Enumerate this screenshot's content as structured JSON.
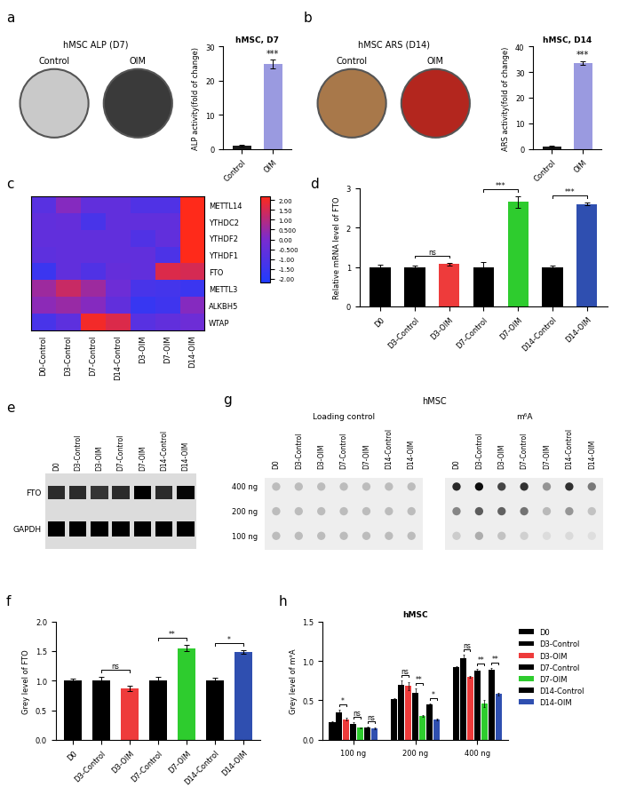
{
  "chart_data": [
    {
      "panel": "a",
      "type": "image",
      "title": "hMSC ALP (D7)",
      "labels": [
        "Control",
        "OIM"
      ],
      "colors": [
        "#c9c9c9",
        "#3a3a3a"
      ]
    },
    {
      "type": "bar",
      "title": "hMSC, D7",
      "categories": [
        "Control",
        "OIM"
      ],
      "values": [
        1.0,
        24.8
      ],
      "errors": [
        0.3,
        1.3
      ],
      "colors": [
        "#1a1a1a",
        "#9a9ae0"
      ],
      "ylabel": "ALP activity(fold of change)",
      "ylim": [
        0,
        30
      ],
      "yticks": [
        0,
        10,
        20,
        30
      ],
      "bar_marks": [
        {
          "index": 1,
          "label": "***"
        }
      ]
    },
    {
      "panel": "b",
      "type": "image",
      "title": "hMSC ARS (D14)",
      "labels": [
        "Control",
        "OIM"
      ],
      "colors": [
        "#a8784a",
        "#b3261e"
      ]
    },
    {
      "type": "bar",
      "title": "hMSC, D14",
      "categories": [
        "Control",
        "OIM"
      ],
      "values": [
        1.0,
        33.5
      ],
      "errors": [
        0.3,
        0.8
      ],
      "colors": [
        "#1a1a1a",
        "#9a9ae0"
      ],
      "ylabel": "ARS activity(fold of change)",
      "ylim": [
        0,
        40
      ],
      "yticks": [
        0,
        10,
        20,
        30,
        40
      ],
      "bar_marks": [
        {
          "index": 1,
          "label": "***"
        }
      ]
    },
    {
      "panel": "c",
      "type": "heatmap",
      "rows": [
        "METTL14",
        "YTHDC2",
        "YTHDF2",
        "YTHDF1",
        "FTO",
        "METTL3",
        "ALKBH5",
        "WTAP"
      ],
      "columns": [
        "D0-Control",
        "D3-Control",
        "D7-Control",
        "D14-Control",
        "D3-OIM",
        "D7-OIM",
        "D14-OIM"
      ],
      "cells": [
        [
          -0.8,
          0.2,
          -0.6,
          -0.6,
          -1.0,
          -1.0,
          2.2
        ],
        [
          -0.6,
          -0.5,
          -1.2,
          -0.6,
          -0.6,
          -0.6,
          2.2
        ],
        [
          -0.6,
          -0.6,
          -0.6,
          -0.6,
          -1.0,
          -0.6,
          2.2
        ],
        [
          -0.7,
          -0.6,
          -0.6,
          -0.6,
          -0.6,
          -1.1,
          2.2
        ],
        [
          -1.5,
          -0.6,
          -1.0,
          -0.5,
          -0.6,
          1.6,
          1.5
        ],
        [
          0.6,
          1.3,
          0.6,
          -0.3,
          -1.2,
          -1.3,
          -1.5
        ],
        [
          0.3,
          0.5,
          0.2,
          -0.6,
          -1.6,
          -1.4,
          0.2
        ],
        [
          -1.2,
          -0.7,
          2.0,
          1.6,
          -0.8,
          -0.6,
          -0.3
        ]
      ],
      "colors": [
        "#1f3cff",
        "#7a2bd0",
        "#ff2a1a"
      ],
      "color_range": [
        -2.2,
        2.2
      ],
      "colorbar_ticks": [
        {
          "value": 2,
          "label": "2.00"
        },
        {
          "value": 1.5,
          "label": "1.50"
        },
        {
          "value": 1,
          "label": "1.00"
        },
        {
          "value": 0.5,
          "label": "0.500"
        },
        {
          "value": 0,
          "label": "0.00"
        },
        {
          "value": -0.5,
          "label": "-0.500"
        },
        {
          "value": -1,
          "label": "-1.00"
        },
        {
          "value": -1.5,
          "label": "-1.50"
        },
        {
          "value": -2,
          "label": "-2.00"
        }
      ]
    },
    {
      "panel": "d",
      "type": "bar",
      "categories": [
        "D0",
        "D3-Control",
        "D3-OIM",
        "D7-Control",
        "D7-OIM",
        "D14-Control",
        "D14-OIM"
      ],
      "values": [
        1.0,
        1.0,
        1.07,
        1.0,
        2.65,
        1.0,
        2.6
      ],
      "errors": [
        0.06,
        0.04,
        0.04,
        0.12,
        0.14,
        0.03,
        0.04
      ],
      "colors": [
        "#000000",
        "#000000",
        "#ee3b3b",
        "#000000",
        "#2ecc2e",
        "#000000",
        "#2f4fb0"
      ],
      "ylabel": "Relative mRNA level of FTO",
      "ylim": [
        0,
        3
      ],
      "yticks": [
        0,
        1,
        2,
        3
      ],
      "annotations": [
        {
          "pair": [
            1,
            2
          ],
          "label": "ns"
        },
        {
          "pair": [
            3,
            4
          ],
          "label": "***"
        },
        {
          "pair": [
            5,
            6
          ],
          "label": "***"
        }
      ]
    },
    {
      "panel": "e",
      "type": "blot",
      "lanes": [
        "D0",
        "D3-Control",
        "D3-OIM",
        "D7-Control",
        "D7-OIM",
        "D14-Control",
        "D14-OIM"
      ],
      "rows": [
        "FTO",
        "GAPDH"
      ]
    },
    {
      "panel": "f",
      "type": "bar",
      "categories": [
        "D0",
        "D3-Control",
        "D3-OIM",
        "D7-Control",
        "D7-OIM",
        "D14-Control",
        "D14-OIM"
      ],
      "values": [
        1.0,
        1.0,
        0.87,
        1.0,
        1.55,
        1.0,
        1.48
      ],
      "errors": [
        0.04,
        0.06,
        0.05,
        0.06,
        0.05,
        0.05,
        0.03
      ],
      "colors": [
        "#000000",
        "#000000",
        "#ee3b3b",
        "#000000",
        "#2ecc2e",
        "#000000",
        "#2f4fb0"
      ],
      "ylabel": "Grey level of FTO",
      "ylim": [
        0,
        2
      ],
      "yticks": [
        {
          "value": 0,
          "label": "0.0"
        },
        0.5,
        {
          "value": 1,
          "label": "1.0"
        },
        1.5,
        {
          "value": 2,
          "label": "2.0"
        }
      ],
      "annotations": [
        {
          "pair": [
            1,
            2
          ],
          "label": "ns"
        },
        {
          "pair": [
            3,
            4
          ],
          "label": "**"
        },
        {
          "pair": [
            5,
            6
          ],
          "label": "*"
        }
      ]
    },
    {
      "panel": "g",
      "type": "dot_blot",
      "title": "hMSC",
      "sections": [
        "Loading control",
        "m⁶A"
      ],
      "lanes": [
        "D0",
        "D3-Control",
        "D3-OIM",
        "D7-Control",
        "D7-OIM",
        "D14-Control",
        "D14-OIM"
      ],
      "rows": [
        "400 ng",
        "200 ng",
        "100 ng"
      ]
    },
    {
      "panel": "h",
      "type": "bar",
      "title": "hMSC",
      "categories": [
        "100 ng",
        "200 ng",
        "400 ng"
      ],
      "series": [
        {
          "name": "D0",
          "color": "#000000",
          "values": [
            0.22,
            0.52,
            0.92
          ],
          "errors": [
            0.01,
            0.01,
            0.01
          ]
        },
        {
          "name": "D3-Control",
          "color": "#000000",
          "values": [
            0.35,
            0.7,
            1.04
          ],
          "errors": [
            0.03,
            0.05,
            0.04
          ]
        },
        {
          "name": "D3-OIM",
          "color": "#ee3b3b",
          "values": [
            0.26,
            0.68,
            0.8
          ],
          "errors": [
            0.02,
            0.05,
            0.01
          ]
        },
        {
          "name": "D7-Control",
          "color": "#000000",
          "values": [
            0.2,
            0.6,
            0.88
          ],
          "errors": [
            0.02,
            0.05,
            0.02
          ]
        },
        {
          "name": "D7-OIM",
          "color": "#2ecc2e",
          "values": [
            0.15,
            0.3,
            0.46
          ],
          "errors": [
            0.01,
            0.01,
            0.04
          ]
        },
        {
          "name": "D14-Control",
          "color": "#000000",
          "values": [
            0.16,
            0.45,
            0.89
          ],
          "errors": [
            0.01,
            0.01,
            0.02
          ]
        },
        {
          "name": "D14-OIM",
          "color": "#2f4fb0",
          "values": [
            0.14,
            0.26,
            0.58
          ],
          "errors": [
            0.01,
            0.01,
            0.02
          ]
        }
      ],
      "ylabel": "Grey level of m⁶A",
      "ylim": [
        0,
        1.5
      ],
      "yticks": [
        {
          "value": 0,
          "label": "0.0"
        },
        0.5,
        {
          "value": 1,
          "label": "1.0"
        },
        1.5
      ],
      "legend": "right",
      "annotations": [
        {
          "group": 0,
          "pair": [
            1,
            2
          ],
          "label": "*"
        },
        {
          "group": 0,
          "pair": [
            3,
            4
          ],
          "label": "ns"
        },
        {
          "group": 0,
          "pair": [
            5,
            6
          ],
          "label": "ns"
        },
        {
          "group": 1,
          "pair": [
            1,
            2
          ],
          "label": "ns"
        },
        {
          "group": 1,
          "pair": [
            3,
            4
          ],
          "label": "**"
        },
        {
          "group": 1,
          "pair": [
            5,
            6
          ],
          "label": "*"
        },
        {
          "group": 2,
          "pair": [
            1,
            2
          ],
          "label": "ns"
        },
        {
          "group": 2,
          "pair": [
            3,
            4
          ],
          "label": "**"
        },
        {
          "group": 2,
          "pair": [
            5,
            6
          ],
          "label": "**"
        }
      ]
    }
  ]
}
